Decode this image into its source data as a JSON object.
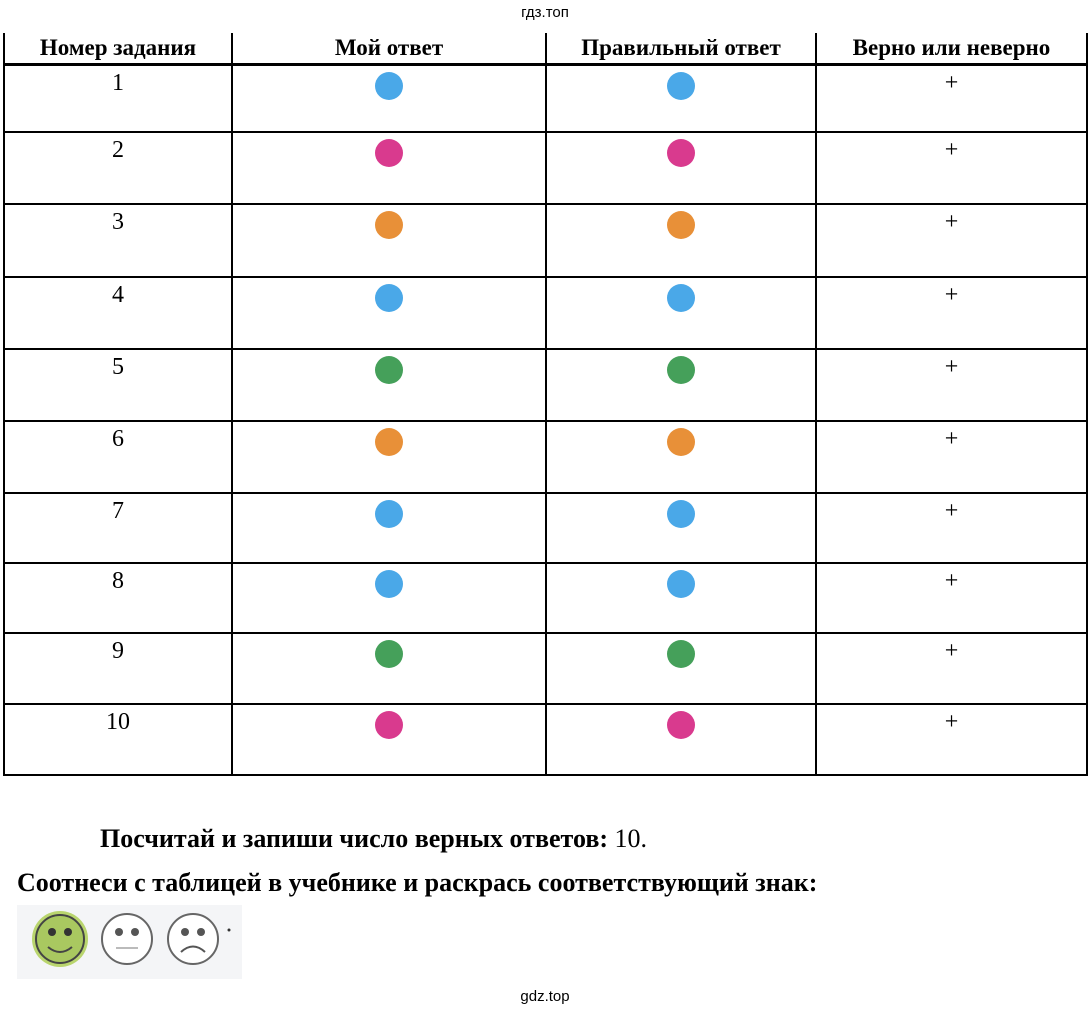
{
  "watermark_top": "гдз.топ",
  "watermark_bottom": "gdz.top",
  "table": {
    "headers": [
      "Номер задания",
      "Мой ответ",
      "Правильный ответ",
      "Верно или неверно"
    ],
    "rows": [
      {
        "n": "1",
        "mine": "#4aa8e8",
        "correct": "#4aa8e8",
        "mark": "+"
      },
      {
        "n": "2",
        "mine": "#d93a8e",
        "correct": "#d93a8e",
        "mark": "+"
      },
      {
        "n": "3",
        "mine": "#e89038",
        "correct": "#e89038",
        "mark": "+"
      },
      {
        "n": "4",
        "mine": "#4aa8e8",
        "correct": "#4aa8e8",
        "mark": "+"
      },
      {
        "n": "5",
        "mine": "#45a05a",
        "correct": "#45a05a",
        "mark": "+"
      },
      {
        "n": "6",
        "mine": "#e89038",
        "correct": "#e89038",
        "mark": "+"
      },
      {
        "n": "7",
        "mine": "#4aa8e8",
        "correct": "#4aa8e8",
        "mark": "+"
      },
      {
        "n": "8",
        "mine": "#4aa8e8",
        "correct": "#4aa8e8",
        "mark": "+"
      },
      {
        "n": "9",
        "mine": "#45a05a",
        "correct": "#45a05a",
        "mark": "+"
      },
      {
        "n": "10",
        "mine": "#d93a8e",
        "correct": "#d93a8e",
        "mark": "+"
      }
    ]
  },
  "count_label": "Посчитай и запиши число верных ответов:",
  "count_value": "10.",
  "instruction": "Соотнеси с таблицей в учебнике и раскрась соответствующий знак:",
  "faces": [
    {
      "icon": "smile-face-icon",
      "colored": true,
      "fill": "#b9d56e"
    },
    {
      "icon": "neutral-face-icon",
      "colored": false
    },
    {
      "icon": "sad-face-icon",
      "colored": false
    }
  ]
}
